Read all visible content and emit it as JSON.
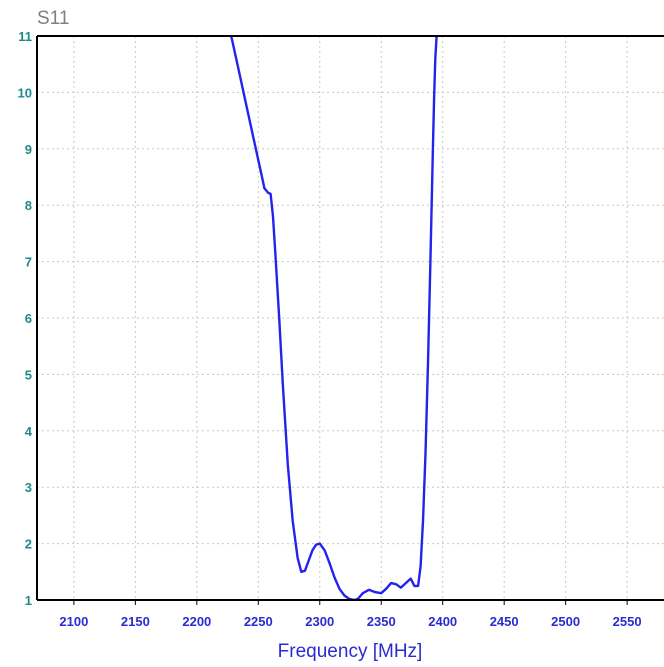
{
  "chart_data": {
    "type": "line",
    "title": "S11",
    "xlabel": "Frequency [MHz]",
    "ylabel": "",
    "xlim": [
      2070,
      2580
    ],
    "ylim": [
      1,
      11
    ],
    "xticks": [
      2100,
      2150,
      2200,
      2250,
      2300,
      2350,
      2400,
      2450,
      2500,
      2550
    ],
    "yticks": [
      1,
      2,
      3,
      4,
      5,
      6,
      7,
      8,
      9,
      10,
      11
    ],
    "grid": true,
    "colors": {
      "line": "#2323ee",
      "grid": "#c8c8c8",
      "axis": "#000000",
      "ytick": "#1f8a8a",
      "xtick": "#2b2bd4",
      "title": "#7f7f7f"
    },
    "series": [
      {
        "x": [
          2228,
          2232,
          2236,
          2240,
          2244,
          2248,
          2252,
          2255,
          2258,
          2260,
          2262,
          2264,
          2267,
          2270,
          2274,
          2278,
          2282,
          2285,
          2288,
          2291,
          2294,
          2297,
          2300,
          2304,
          2308,
          2312,
          2316,
          2320,
          2324,
          2328,
          2331,
          2335,
          2340,
          2345,
          2350,
          2354,
          2358,
          2362,
          2366,
          2370,
          2374,
          2377,
          2380,
          2382,
          2384,
          2386,
          2388,
          2390,
          2392,
          2393,
          2394,
          2395
        ],
        "y": [
          11.0,
          10.6,
          10.2,
          9.8,
          9.4,
          9.0,
          8.6,
          8.3,
          8.22,
          8.2,
          7.8,
          7.1,
          6.0,
          4.8,
          3.4,
          2.4,
          1.75,
          1.5,
          1.52,
          1.7,
          1.88,
          1.98,
          2.0,
          1.88,
          1.65,
          1.4,
          1.2,
          1.08,
          1.02,
          1.0,
          1.02,
          1.12,
          1.18,
          1.14,
          1.12,
          1.2,
          1.3,
          1.28,
          1.22,
          1.3,
          1.38,
          1.25,
          1.25,
          1.6,
          2.4,
          3.6,
          5.2,
          7.0,
          9.0,
          9.9,
          10.6,
          11.0
        ]
      }
    ]
  }
}
